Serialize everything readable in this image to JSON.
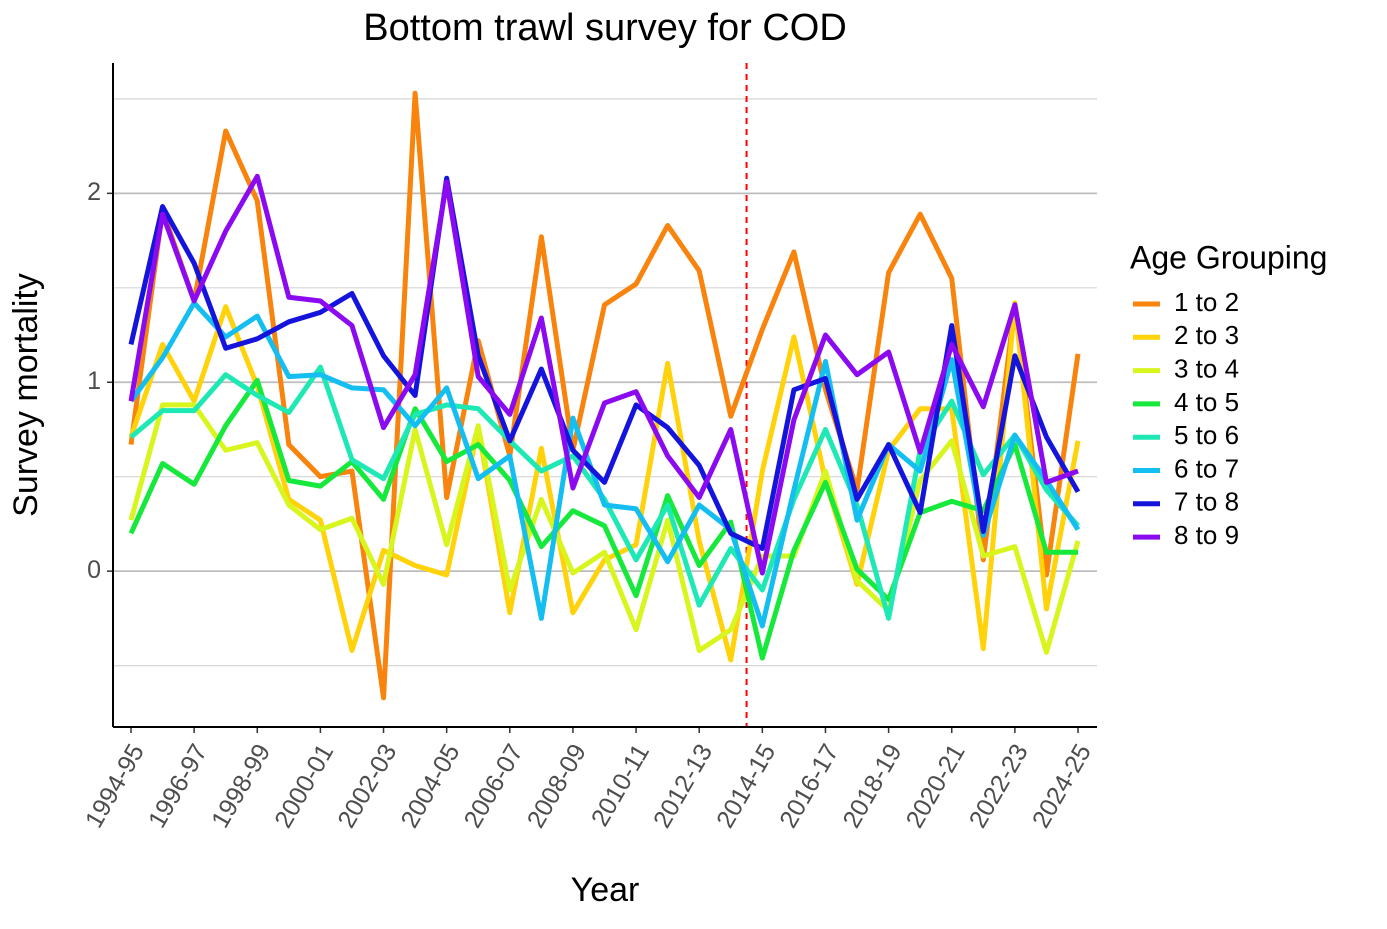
{
  "chart_data": {
    "type": "line",
    "title": "Bottom trawl survey for COD",
    "x_label": "Year",
    "y_label": "Survey mortality",
    "categories": [
      "1994-95",
      null,
      "1996-97",
      null,
      "1998-99",
      null,
      "2000-01",
      null,
      "2002-03",
      null,
      "2004-05",
      null,
      "2006-07",
      null,
      "2008-09",
      null,
      "2010-11",
      null,
      "2012-13",
      null,
      "2014-15",
      null,
      "2016-17",
      null,
      "2018-19",
      null,
      "2020-21",
      null,
      "2022-23",
      null,
      "2024-25"
    ],
    "ylim": [
      -0.825,
      2.69
    ],
    "yticks": [
      0,
      1,
      2
    ],
    "yminorticks": [
      -0.5,
      0.5,
      1.5,
      2.5
    ],
    "grid": true,
    "legend": "right",
    "legend_title": "Age Grouping",
    "vline": 19.5,
    "vline_color": "#ff0000",
    "series": [
      {
        "name": "1 to 2",
        "color": "#F8830D",
        "values": [
          0.67,
          1.91,
          1.43,
          2.33,
          1.96,
          0.67,
          0.5,
          0.53,
          -0.67,
          2.53,
          0.39,
          1.22,
          0.61,
          1.77,
          0.64,
          1.41,
          1.52,
          1.83,
          1.59,
          0.82,
          1.28,
          1.69,
          0.96,
          0.43,
          1.58,
          1.89,
          1.55,
          0.06,
          1.41,
          -0.02,
          1.15
        ]
      },
      {
        "name": "2 to 3",
        "color": "#FFD20A",
        "values": [
          0.71,
          1.2,
          0.9,
          1.4,
          0.98,
          0.38,
          0.27,
          -0.42,
          0.11,
          0.03,
          -0.02,
          0.76,
          -0.22,
          0.65,
          -0.22,
          0.06,
          0.14,
          1.1,
          0.16,
          -0.47,
          0.53,
          1.24,
          0.48,
          -0.07,
          0.64,
          0.86,
          0.86,
          -0.41,
          1.42,
          -0.2,
          0.69
        ]
      },
      {
        "name": "3 to 4",
        "color": "#D8F51E",
        "values": [
          0.27,
          0.88,
          0.88,
          0.64,
          0.68,
          0.35,
          0.22,
          0.28,
          -0.07,
          0.75,
          0.14,
          0.77,
          -0.1,
          0.38,
          -0.01,
          0.1,
          -0.31,
          0.27,
          -0.42,
          -0.31,
          0.08,
          0.08,
          0.53,
          -0.05,
          -0.21,
          0.48,
          0.69,
          0.08,
          0.13,
          -0.43,
          0.16
        ]
      },
      {
        "name": "4 to 5",
        "color": "#16E83C",
        "values": [
          0.2,
          0.57,
          0.46,
          0.77,
          1.01,
          0.48,
          0.45,
          0.58,
          0.38,
          0.86,
          0.58,
          0.67,
          0.48,
          0.13,
          0.32,
          0.24,
          -0.13,
          0.4,
          0.03,
          0.26,
          -0.46,
          0.11,
          0.47,
          0.01,
          -0.15,
          0.31,
          0.37,
          0.32,
          0.67,
          0.1,
          0.1
        ]
      },
      {
        "name": "5 to 6",
        "color": "#1EE8B4",
        "values": [
          0.71,
          0.85,
          0.85,
          1.04,
          0.93,
          0.84,
          1.08,
          0.59,
          0.49,
          0.83,
          0.88,
          0.86,
          0.69,
          0.53,
          0.61,
          0.38,
          0.06,
          0.35,
          -0.18,
          0.12,
          -0.1,
          0.38,
          0.75,
          0.35,
          -0.25,
          0.64,
          0.9,
          0.51,
          0.72,
          0.43,
          0.24
        ]
      },
      {
        "name": "6 to 7",
        "color": "#14BEF0",
        "values": [
          0.9,
          1.13,
          1.42,
          1.24,
          1.35,
          1.03,
          1.04,
          0.97,
          0.96,
          0.77,
          0.97,
          0.49,
          0.61,
          -0.25,
          0.81,
          0.35,
          0.33,
          0.05,
          0.35,
          0.22,
          -0.29,
          0.43,
          1.11,
          0.27,
          0.67,
          0.53,
          1.12,
          0.19,
          0.72,
          0.48,
          0.22
        ]
      },
      {
        "name": "7 to 8",
        "color": "#1414DC",
        "values": [
          1.2,
          1.93,
          1.63,
          1.18,
          1.23,
          1.32,
          1.37,
          1.47,
          1.14,
          0.93,
          2.08,
          1.14,
          0.69,
          1.07,
          0.64,
          0.47,
          0.88,
          0.76,
          0.56,
          0.2,
          0.12,
          0.96,
          1.02,
          0.38,
          0.67,
          0.31,
          1.3,
          0.21,
          1.14,
          0.71,
          0.42
        ]
      },
      {
        "name": "8 to 9",
        "color": "#8C0AF0",
        "values": [
          0.9,
          1.89,
          1.43,
          1.8,
          2.09,
          1.45,
          1.43,
          1.3,
          0.76,
          1.04,
          2.06,
          1.03,
          0.83,
          1.34,
          0.44,
          0.89,
          0.95,
          0.61,
          0.39,
          0.75,
          -0.01,
          0.8,
          1.25,
          1.04,
          1.16,
          0.63,
          1.2,
          0.87,
          1.41,
          0.47,
          0.53
        ]
      }
    ]
  }
}
